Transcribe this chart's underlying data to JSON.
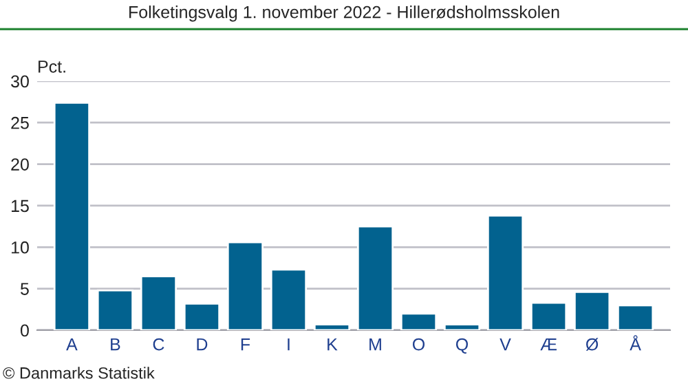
{
  "chart_data": {
    "type": "bar",
    "title": "Folketingsvalg 1. november 2022 - Hillerødsholmsskolen",
    "ylabel": "Pct.",
    "categories": [
      "A",
      "B",
      "C",
      "D",
      "F",
      "I",
      "K",
      "M",
      "O",
      "Q",
      "V",
      "Æ",
      "Ø",
      "Å"
    ],
    "values": [
      27.4,
      4.8,
      6.5,
      3.2,
      10.6,
      7.3,
      0.7,
      12.5,
      2.0,
      0.7,
      13.8,
      3.3,
      4.6,
      3.0
    ],
    "color": "#02628f",
    "ylim": [
      0,
      30
    ],
    "yticks": [
      0,
      5,
      10,
      15,
      20,
      25,
      30
    ],
    "grid": "y",
    "legend": false,
    "annotations": [
      "© Danmarks Statistik"
    ]
  }
}
